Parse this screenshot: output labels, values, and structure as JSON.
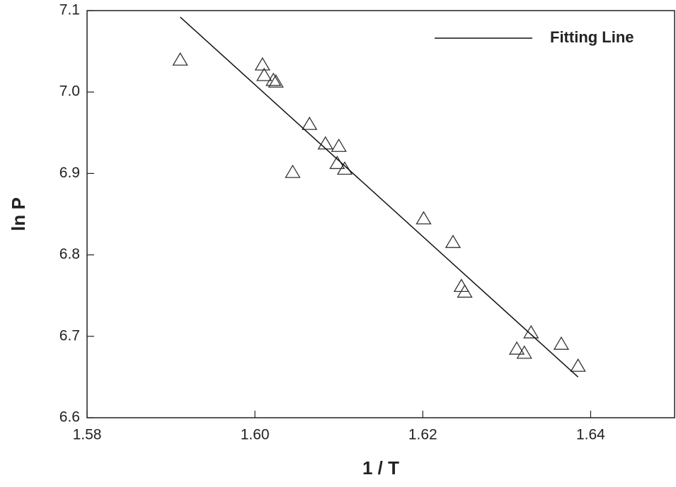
{
  "chart_data": {
    "type": "scatter",
    "xlabel": "1 / T",
    "ylabel": "ln P",
    "xlim": [
      1.58,
      1.65
    ],
    "ylim": [
      6.6,
      7.1
    ],
    "xticks": [
      1.58,
      {
        "value": 1.6,
        "label": "1.60"
      },
      1.62,
      1.64
    ],
    "yticks": [
      6.6,
      6.7,
      6.8,
      6.9,
      {
        "value": 7,
        "label": "7.0"
      },
      7.1
    ],
    "points": {
      "marker": "triangle",
      "color": "#333333",
      "x": [
        1.5911,
        1.6009,
        1.6011,
        1.6022,
        1.6025,
        1.6065,
        1.6084,
        1.61,
        1.6045,
        1.6098,
        1.6107,
        1.6201,
        1.6236,
        1.6246,
        1.625,
        1.6329,
        1.6312,
        1.6321,
        1.6365,
        1.6385
      ],
      "values": [
        7.04,
        7.034,
        7.021,
        7.015,
        7.013,
        6.961,
        6.937,
        6.934,
        6.902,
        6.913,
        6.906,
        6.845,
        6.816,
        6.762,
        6.755,
        6.705,
        6.685,
        6.68,
        6.691,
        6.664
      ]
    },
    "series": [
      {
        "name": "Fitting Line",
        "color": "#111111",
        "x": [
          1.5911,
          1.6385
        ],
        "values": [
          7.092,
          6.65
        ]
      }
    ],
    "legend": "upper right"
  }
}
